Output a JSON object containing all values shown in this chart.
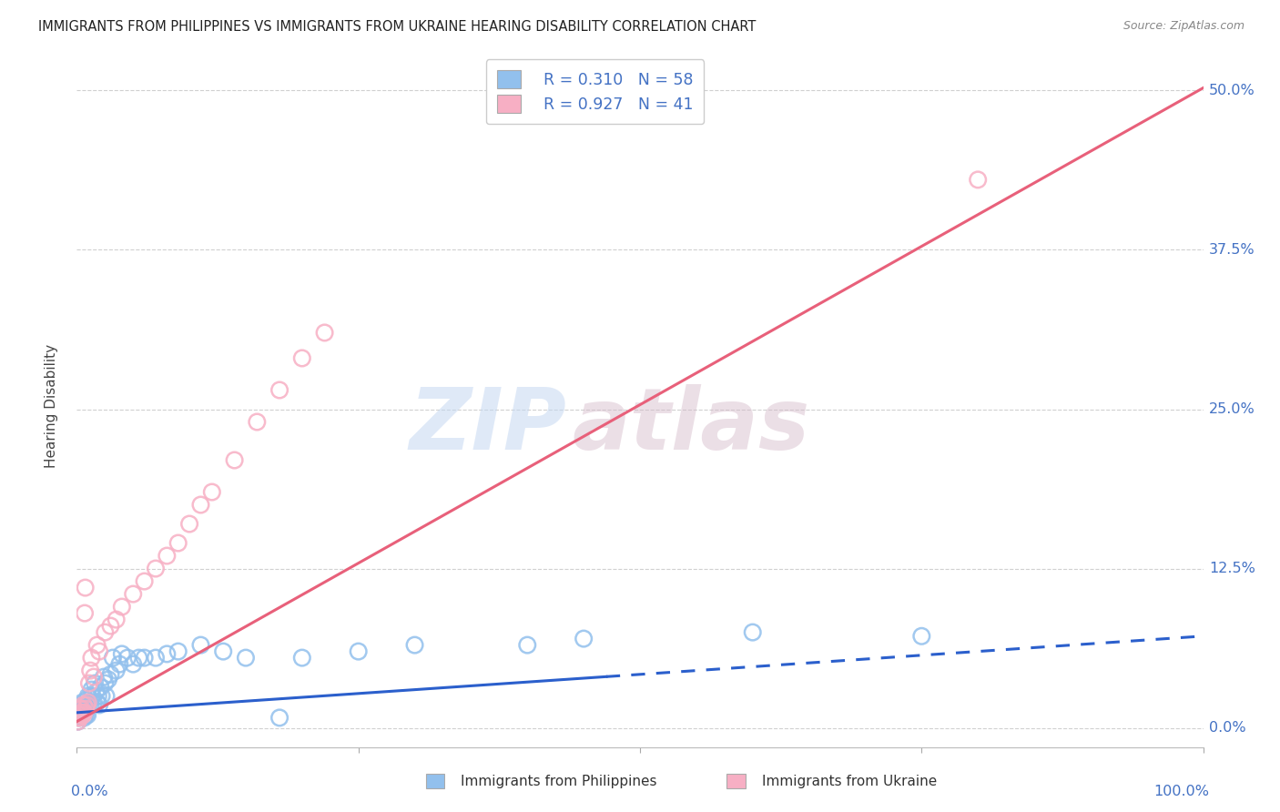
{
  "title": "IMMIGRANTS FROM PHILIPPINES VS IMMIGRANTS FROM UKRAINE HEARING DISABILITY CORRELATION CHART",
  "source": "Source: ZipAtlas.com",
  "ylabel": "Hearing Disability",
  "ytick_labels": [
    "0.0%",
    "12.5%",
    "25.0%",
    "37.5%",
    "50.0%"
  ],
  "ytick_values": [
    0.0,
    12.5,
    25.0,
    37.5,
    50.0
  ],
  "xlim": [
    0,
    100
  ],
  "ylim": [
    -1.5,
    52
  ],
  "watermark_zip": "ZIP",
  "watermark_atlas": "atlas",
  "legend_r1": "R = 0.310",
  "legend_n1": "N = 58",
  "legend_r2": "R = 0.927",
  "legend_n2": "N = 41",
  "color_philippines": "#92c0ed",
  "color_ukraine": "#f7afc4",
  "line_color_philippines": "#2b5fcc",
  "line_color_ukraine": "#e8607a",
  "background_color": "#ffffff",
  "philippines_x": [
    0.1,
    0.15,
    0.2,
    0.25,
    0.3,
    0.35,
    0.4,
    0.45,
    0.5,
    0.55,
    0.6,
    0.65,
    0.7,
    0.75,
    0.8,
    0.85,
    0.9,
    0.95,
    1.0,
    1.1,
    1.2,
    1.3,
    1.4,
    1.5,
    1.6,
    1.7,
    1.8,
    1.9,
    2.0,
    2.1,
    2.2,
    2.4,
    2.5,
    2.6,
    2.8,
    3.0,
    3.2,
    3.5,
    3.8,
    4.0,
    4.5,
    5.0,
    5.5,
    6.0,
    7.0,
    8.0,
    9.0,
    11.0,
    13.0,
    15.0,
    18.0,
    20.0,
    25.0,
    30.0,
    40.0,
    45.0,
    60.0,
    75.0
  ],
  "philippines_y": [
    0.5,
    1.0,
    0.8,
    1.5,
    1.2,
    0.9,
    1.8,
    1.0,
    2.0,
    1.5,
    1.2,
    0.8,
    1.5,
    1.8,
    1.0,
    2.2,
    1.5,
    1.0,
    2.5,
    2.0,
    1.8,
    3.0,
    2.5,
    2.0,
    3.5,
    2.8,
    2.0,
    2.5,
    1.8,
    3.2,
    2.5,
    4.0,
    3.5,
    2.5,
    3.8,
    4.2,
    5.5,
    4.5,
    5.0,
    5.8,
    5.5,
    5.0,
    5.5,
    5.5,
    5.5,
    5.8,
    6.0,
    6.5,
    6.0,
    5.5,
    0.8,
    5.5,
    6.0,
    6.5,
    6.5,
    7.0,
    7.5,
    7.2
  ],
  "ukraine_x": [
    0.1,
    0.15,
    0.2,
    0.25,
    0.3,
    0.35,
    0.4,
    0.45,
    0.5,
    0.55,
    0.6,
    0.65,
    0.7,
    0.75,
    0.8,
    0.9,
    1.0,
    1.1,
    1.2,
    1.3,
    1.5,
    1.8,
    2.0,
    2.5,
    3.0,
    3.5,
    4.0,
    5.0,
    6.0,
    7.0,
    8.0,
    9.0,
    10.0,
    11.0,
    12.0,
    14.0,
    16.0,
    18.0,
    20.0,
    22.0,
    80.0
  ],
  "ukraine_y": [
    0.5,
    0.8,
    1.0,
    0.8,
    1.5,
    1.2,
    1.0,
    1.5,
    1.2,
    1.0,
    1.8,
    1.2,
    9.0,
    11.0,
    1.5,
    1.8,
    2.0,
    3.5,
    4.5,
    5.5,
    4.0,
    6.5,
    6.0,
    7.5,
    8.0,
    8.5,
    9.5,
    10.5,
    11.5,
    12.5,
    13.5,
    14.5,
    16.0,
    17.5,
    18.5,
    21.0,
    24.0,
    26.5,
    29.0,
    31.0,
    43.0
  ],
  "ph_slope": 0.06,
  "ph_intercept": 1.2,
  "ph_line_x0": 0,
  "ph_line_x1": 100,
  "ph_dash_start": 47,
  "uk_slope": 0.497,
  "uk_intercept": 0.5,
  "uk_line_x0": 0,
  "uk_line_x1": 100
}
